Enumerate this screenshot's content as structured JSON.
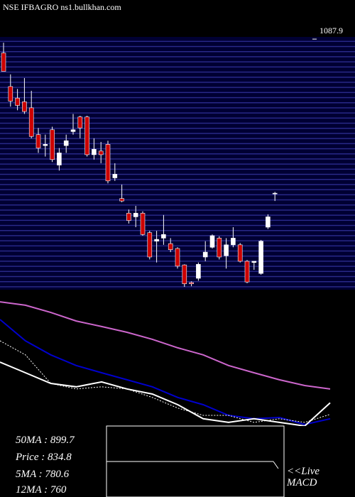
{
  "chart_data": [
    {
      "type": "candlestick",
      "title": "NSE IFBAGRO ns1.bullkhan.com",
      "categories": [
        null,
        null,
        null,
        null,
        null,
        null,
        null,
        null,
        null,
        null,
        null,
        null,
        null,
        null,
        null,
        null,
        null,
        null,
        null,
        null,
        null,
        null,
        null,
        null,
        null,
        null,
        null,
        null,
        null,
        null,
        null,
        null,
        null,
        null,
        null,
        null,
        null,
        null,
        null,
        null
      ],
      "open": [
        1065,
        1010,
        991,
        985,
        975,
        931,
        913,
        939,
        881,
        913,
        936,
        960,
        960,
        898,
        904,
        915,
        860,
        826,
        802,
        796,
        802,
        770,
        756,
        761,
        752,
        744,
        717,
        688,
        695,
        730,
        746,
        761,
        732,
        750,
        750,
        723,
        721,
        703,
        779,
        834.8
      ],
      "high": [
        1082,
        1030,
        1006,
        1024,
        1003,
        942,
        931,
        944,
        909,
        931,
        965,
        962,
        962,
        925,
        919,
        921,
        884,
        849,
        808,
        814,
        805,
        773,
        773,
        799,
        761,
        746,
        718,
        690,
        721,
        756,
        767,
        764,
        761,
        779,
        753,
        725,
        723,
        758,
        800,
        837
      ],
      "low": [
        1035,
        977,
        971,
        965,
        925,
        901,
        895,
        886,
        872,
        901,
        931,
        925,
        895,
        890,
        884,
        851,
        855,
        820,
        785,
        779,
        765,
        726,
        721,
        750,
        738,
        711,
        681,
        682,
        691,
        723,
        744,
        726,
        711,
        746,
        721,
        687,
        709,
        701,
        776,
        822
      ],
      "close": [
        1035,
        986,
        979,
        969,
        928,
        909,
        915,
        890,
        901,
        921,
        939,
        942,
        898,
        907,
        898,
        855,
        866,
        822,
        790,
        802,
        767,
        730,
        759,
        767,
        742,
        715,
        686,
        686,
        718,
        738,
        765,
        730,
        750,
        761,
        723,
        689,
        723,
        756,
        796,
        834.8
      ],
      "up_color": "#ffffff",
      "down_color": "#cc0000",
      "ylim": [
        681,
        1088
      ],
      "yticks": [
        {
          "value": 1087.9,
          "label": "1087.9"
        }
      ]
    },
    {
      "type": "line",
      "series": [
        {
          "name": "50MA",
          "color": "#cc66cc",
          "values": [
            1309,
            1293,
            1259,
            1219,
            1193,
            1166,
            1133,
            1093,
            1060,
            1010,
            976,
            943,
            916,
            899.7
          ]
        },
        {
          "name": "12MA",
          "color": "#0000cc",
          "values": [
            1226,
            1126,
            1060,
            1010,
            976,
            943,
            910,
            860,
            826,
            776,
            760,
            766,
            733,
            760
          ]
        },
        {
          "name": "5MA",
          "color": "#ffffff",
          "dash": true,
          "values": [
            1126,
            1060,
            926,
            900,
            910,
            900,
            860,
            810,
            776,
            776,
            743,
            760,
            743,
            780.6
          ]
        },
        {
          "name": "Price",
          "color": "#ffffff",
          "values": [
            1026,
            976,
            926,
            910,
            933,
            900,
            876,
            826,
            760,
            743,
            760,
            743,
            726,
            834.8
          ]
        }
      ],
      "ylim": [
        726,
        1326
      ],
      "annotations": [
        "50MA : 899.7",
        "Price   : 834.8",
        "5MA : 780.6",
        "12MA : 760",
        "<<Live",
        "MACD"
      ]
    }
  ]
}
